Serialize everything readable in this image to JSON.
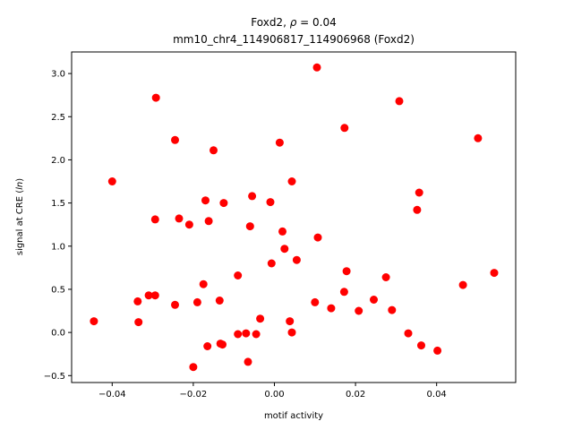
{
  "chart_data": {
    "type": "scatter",
    "title_line1_prefix": "Foxd2, ",
    "title_rho_symbol": "ρ",
    "title_rho_value": " = 0.04",
    "title_line2": "mm10_chr4_114906817_114906968 (Foxd2)",
    "xlabel": "motif activity",
    "ylabel_prefix": "signal at CRE (",
    "ylabel_italic": "ln",
    "ylabel_suffix": ")",
    "xlim": [
      -0.05,
      0.0595
    ],
    "ylim": [
      -0.58,
      3.25
    ],
    "x_ticks": [
      -0.04,
      -0.02,
      0.0,
      0.02,
      0.04
    ],
    "x_tick_labels": [
      "−0.04",
      "−0.02",
      "0.00",
      "0.02",
      "0.04"
    ],
    "y_ticks": [
      -0.5,
      0.0,
      0.5,
      1.0,
      1.5,
      2.0,
      2.5,
      3.0
    ],
    "y_tick_labels": [
      "−0.5",
      "0.0",
      "0.5",
      "1.0",
      "1.5",
      "2.0",
      "2.5",
      "3.0"
    ],
    "grid": false,
    "marker_color": "#ff0000",
    "points": [
      {
        "x": -0.0445,
        "y": 0.13
      },
      {
        "x": -0.04,
        "y": 1.75
      },
      {
        "x": -0.0337,
        "y": 0.36
      },
      {
        "x": -0.0335,
        "y": 0.12
      },
      {
        "x": -0.031,
        "y": 0.43
      },
      {
        "x": -0.0294,
        "y": 0.43
      },
      {
        "x": -0.0294,
        "y": 1.31
      },
      {
        "x": -0.0292,
        "y": 2.72
      },
      {
        "x": -0.0245,
        "y": 2.23
      },
      {
        "x": -0.0245,
        "y": 0.32
      },
      {
        "x": -0.0235,
        "y": 1.32
      },
      {
        "x": -0.021,
        "y": 1.25
      },
      {
        "x": -0.02,
        "y": -0.4
      },
      {
        "x": -0.019,
        "y": 0.35
      },
      {
        "x": -0.0175,
        "y": 0.56
      },
      {
        "x": -0.017,
        "y": 1.53
      },
      {
        "x": -0.0165,
        "y": -0.16
      },
      {
        "x": -0.0162,
        "y": 1.29
      },
      {
        "x": -0.015,
        "y": 2.11
      },
      {
        "x": -0.0135,
        "y": 0.37
      },
      {
        "x": -0.0133,
        "y": -0.13
      },
      {
        "x": -0.0128,
        "y": -0.14
      },
      {
        "x": -0.0125,
        "y": 1.5
      },
      {
        "x": -0.009,
        "y": 0.66
      },
      {
        "x": -0.009,
        "y": -0.02
      },
      {
        "x": -0.007,
        "y": -0.01
      },
      {
        "x": -0.0065,
        "y": -0.34
      },
      {
        "x": -0.006,
        "y": 1.23
      },
      {
        "x": -0.0055,
        "y": 1.58
      },
      {
        "x": -0.0045,
        "y": -0.02
      },
      {
        "x": -0.0035,
        "y": 0.16
      },
      {
        "x": -0.001,
        "y": 1.51
      },
      {
        "x": -0.0007,
        "y": 0.8
      },
      {
        "x": 0.0013,
        "y": 2.2
      },
      {
        "x": 0.002,
        "y": 1.17
      },
      {
        "x": 0.0025,
        "y": 0.97
      },
      {
        "x": 0.0038,
        "y": 0.13
      },
      {
        "x": 0.0043,
        "y": 1.75
      },
      {
        "x": 0.0043,
        "y": 0.0
      },
      {
        "x": 0.0055,
        "y": 0.84
      },
      {
        "x": 0.01,
        "y": 0.35
      },
      {
        "x": 0.0105,
        "y": 3.07
      },
      {
        "x": 0.0107,
        "y": 1.1
      },
      {
        "x": 0.014,
        "y": 0.28
      },
      {
        "x": 0.0172,
        "y": 0.47
      },
      {
        "x": 0.0173,
        "y": 2.37
      },
      {
        "x": 0.0178,
        "y": 0.71
      },
      {
        "x": 0.0208,
        "y": 0.25
      },
      {
        "x": 0.0245,
        "y": 0.38
      },
      {
        "x": 0.0275,
        "y": 0.64
      },
      {
        "x": 0.029,
        "y": 0.26
      },
      {
        "x": 0.0308,
        "y": 2.68
      },
      {
        "x": 0.033,
        "y": -0.01
      },
      {
        "x": 0.0352,
        "y": 1.42
      },
      {
        "x": 0.0357,
        "y": 1.62
      },
      {
        "x": 0.0362,
        "y": -0.15
      },
      {
        "x": 0.0402,
        "y": -0.21
      },
      {
        "x": 0.0465,
        "y": 0.55
      },
      {
        "x": 0.0502,
        "y": 2.25
      },
      {
        "x": 0.0542,
        "y": 0.69
      }
    ]
  }
}
